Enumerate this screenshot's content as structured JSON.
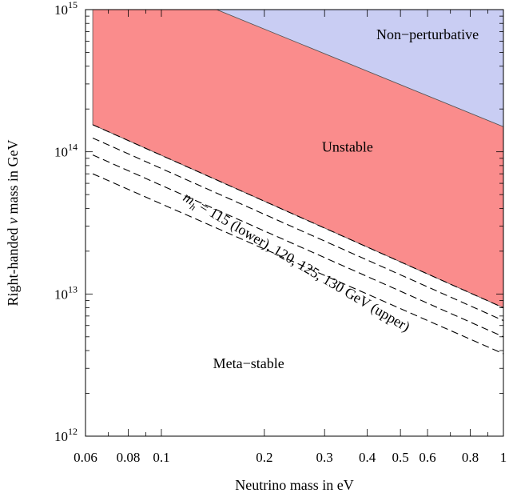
{
  "chart_data": {
    "type": "area",
    "xscale": "log",
    "yscale": "log",
    "xlabel": "Neutrino mass in eV",
    "ylabel_parts": [
      "Right-handed ",
      "ν",
      " mass in GeV"
    ],
    "xlim": [
      0.06,
      1
    ],
    "ylim": [
      1000000000000.0,
      1000000000000000.0
    ],
    "xticks": [
      {
        "value": 0.06,
        "label": "0.06"
      },
      {
        "value": 0.08,
        "label": "0.08"
      },
      {
        "value": 0.1,
        "label": "0.1"
      },
      {
        "value": 0.2,
        "label": "0.2"
      },
      {
        "value": 0.3,
        "label": "0.3"
      },
      {
        "value": 0.4,
        "label": "0.4"
      },
      {
        "value": 0.5,
        "label": "0.5"
      },
      {
        "value": 0.6,
        "label": "0.6"
      },
      {
        "value": 0.8,
        "label": "0.8"
      },
      {
        "value": 1,
        "label": "1"
      }
    ],
    "yticks": [
      {
        "value": 1000000000000.0,
        "base": "10",
        "exp": "12"
      },
      {
        "value": 10000000000000.0,
        "base": "10",
        "exp": "13"
      },
      {
        "value": 100000000000000.0,
        "base": "10",
        "exp": "14"
      },
      {
        "value": 1000000000000000.0,
        "base": "10",
        "exp": "15"
      }
    ],
    "regions": [
      {
        "label": "Non−perturbative",
        "color": "#c9cdf3",
        "label_at": [
          0.6,
          620000000000000.0
        ],
        "polygon": [
          [
            0.145,
            1000000000000000.0
          ],
          [
            1,
            1000000000000000.0
          ],
          [
            1,
            150000000000000.0
          ]
        ]
      },
      {
        "label": "Unstable",
        "color": "#fa8c8c",
        "label_at": [
          0.35,
          100000000000000.0
        ],
        "polygon": [
          [
            0.063,
            1000000000000000.0
          ],
          [
            0.145,
            1000000000000000.0
          ],
          [
            1,
            150000000000000.0
          ],
          [
            1,
            8000000000000.0
          ],
          [
            0.063,
            155000000000000.0
          ]
        ]
      },
      {
        "label": "Meta−stable",
        "color": "#ffffff",
        "label_at": [
          0.18,
          3000000000000.0
        ],
        "polygon": []
      }
    ],
    "series": [
      {
        "style": "dashed",
        "x": [
          0.063,
          1
        ],
        "y": [
          155000000000000.0,
          8000000000000.0
        ]
      },
      {
        "style": "dashed",
        "x": [
          0.063,
          1
        ],
        "y": [
          125000000000000.0,
          6500000000000.0
        ]
      },
      {
        "style": "dashed",
        "x": [
          0.063,
          1
        ],
        "y": [
          95000000000000.0,
          5000000000000.0
        ]
      },
      {
        "style": "dashed",
        "x": [
          0.063,
          1
        ],
        "y": [
          70000000000000.0,
          3800000000000.0
        ]
      }
    ],
    "annotation": {
      "var": "m",
      "sub": "h",
      "text": " = 115 (lower), 120, 125, 130 GeV (upper)",
      "anchor": [
        0.115,
        46000000000000.0
      ],
      "angle_deg": 30.5
    },
    "grid": false,
    "legend": "none"
  }
}
